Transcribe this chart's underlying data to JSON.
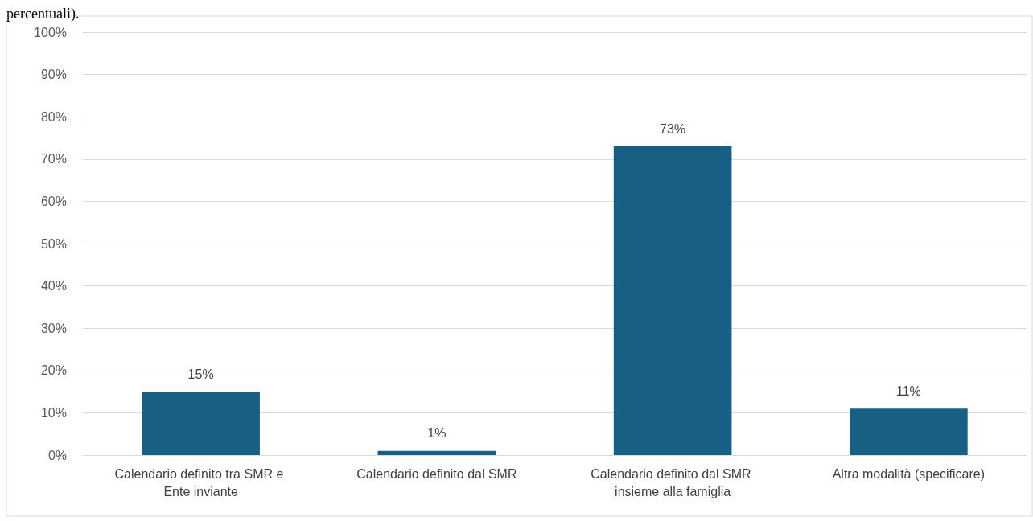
{
  "chart_data": {
    "type": "bar",
    "annotations": [
      "percentuali)."
    ],
    "categories": [
      "Calendario definito tra SMR e Ente inviante",
      "Calendario definito dal SMR",
      "Calendario definito dal SMR insieme alla famiglia",
      "Altra modalità (specificare)"
    ],
    "values": [
      15,
      1,
      73,
      11
    ],
    "value_labels": [
      "15%",
      "1%",
      "73%",
      "11%"
    ],
    "color": "#185f84",
    "ylim": [
      0,
      100
    ],
    "yticks": [
      {
        "value": 0,
        "label": "0%"
      },
      {
        "value": 10,
        "label": "10%"
      },
      {
        "value": 20,
        "label": "20%"
      },
      {
        "value": 30,
        "label": "30%"
      },
      {
        "value": 40,
        "label": "40%"
      },
      {
        "value": 50,
        "label": "50%"
      },
      {
        "value": 60,
        "label": "60%"
      },
      {
        "value": 70,
        "label": "70%"
      },
      {
        "value": 80,
        "label": "80%"
      },
      {
        "value": 90,
        "label": "90%"
      },
      {
        "value": 100,
        "label": "100%"
      }
    ],
    "grid": "y"
  }
}
